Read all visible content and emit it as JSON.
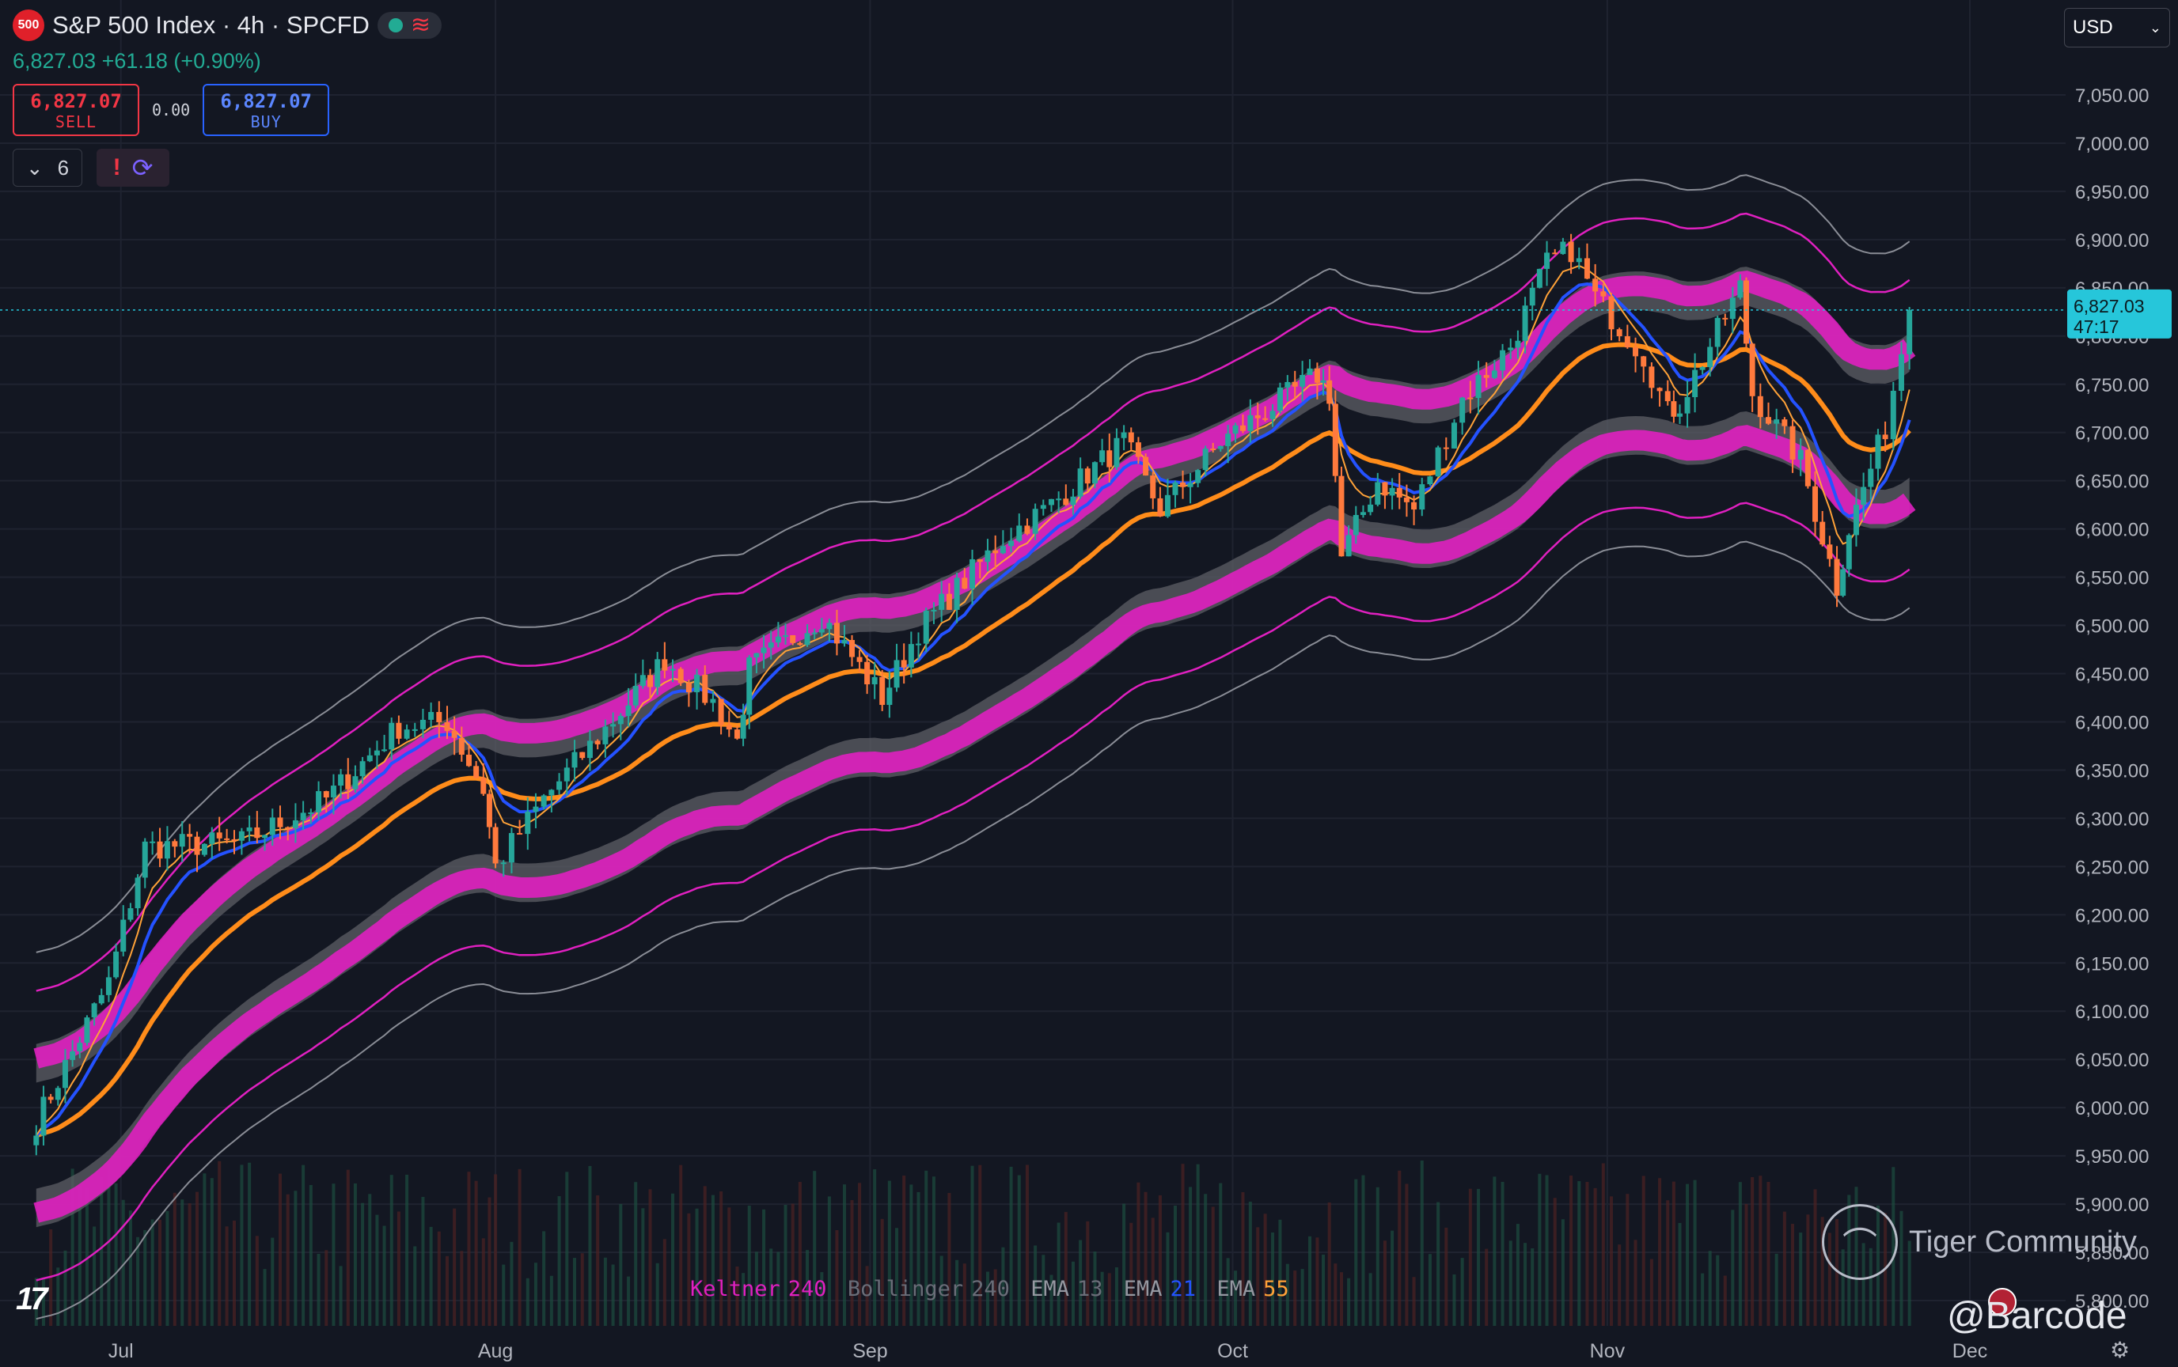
{
  "header": {
    "logo_text": "500",
    "title": "S&P 500 Index · 4h · SPCFD",
    "market_status_color": "#22ab94",
    "quote": "6,827.03 +61.18 (+0.90%)",
    "sell_price": "6,827.07",
    "sell_label": "SELL",
    "spread": "0.00",
    "buy_price": "6,827.07",
    "buy_label": "BUY",
    "collapse_count": "6"
  },
  "currency": "USD",
  "legend": {
    "keltner": "Keltner",
    "keltner_len": "240",
    "bollinger": "Bollinger",
    "bollinger_len": "240",
    "ema1": "EMA",
    "ema1_len": "13",
    "ema2": "EMA",
    "ema2_len": "21",
    "ema3": "EMA",
    "ema3_len": "55"
  },
  "watermark": {
    "text": "Tiger Community",
    "handle": "@Barcode"
  },
  "price_tag": {
    "price": "6,827.03",
    "countdown": "47:17"
  },
  "colors": {
    "background": "#131722",
    "up": "#26a69a",
    "down": "#ff7a3d",
    "keltner": "#e020c0",
    "bollinger_band": "#5d5f66",
    "ema13": "#ffa238",
    "ema21": "#2452ff",
    "ema55": "#ff8c1a"
  },
  "chart_data": {
    "type": "candlestick",
    "title": "S&P 500 Index · 4h · SPCFD",
    "ylim": [
      5775,
      7100
    ],
    "y_ticks": [
      "7,050.00",
      "7,000.00",
      "6,950.00",
      "6,900.00",
      "6,850.00",
      "6,800.00",
      "6,750.00",
      "6,700.00",
      "6,650.00",
      "6,600.00",
      "6,550.00",
      "6,500.00",
      "6,450.00",
      "6,400.00",
      "6,350.00",
      "6,300.00",
      "6,250.00",
      "6,200.00",
      "6,150.00",
      "6,100.00",
      "6,050.00",
      "6,000.00",
      "5,950.00",
      "5,900.00",
      "5,850.00",
      "5,800.00"
    ],
    "y_tick_values": [
      7050,
      7000,
      6950,
      6900,
      6850,
      6800,
      6750,
      6700,
      6650,
      6600,
      6550,
      6500,
      6450,
      6400,
      6350,
      6300,
      6250,
      6200,
      6150,
      6100,
      6050,
      6000,
      5950,
      5900,
      5850,
      5800
    ],
    "x_ticks": [
      "Jul",
      "Aug",
      "Sep",
      "Oct",
      "Nov",
      "Dec"
    ],
    "x_tick_dates": [
      "2025-07-01",
      "2025-08-01",
      "2025-09-01",
      "2025-10-01",
      "2025-11-01",
      "2025-12-01"
    ],
    "last_price": 6827.03,
    "close_path": [
      {
        "date": "2025-06-24",
        "close": 5985
      },
      {
        "date": "2025-06-30",
        "close": 6130
      },
      {
        "date": "2025-07-03",
        "close": 6270
      },
      {
        "date": "2025-07-11",
        "close": 6275
      },
      {
        "date": "2025-07-18",
        "close": 6320
      },
      {
        "date": "2025-07-24",
        "close": 6395
      },
      {
        "date": "2025-07-28",
        "close": 6400
      },
      {
        "date": "2025-07-31",
        "close": 6330
      },
      {
        "date": "2025-08-01",
        "close": 6250
      },
      {
        "date": "2025-08-05",
        "close": 6320
      },
      {
        "date": "2025-08-12",
        "close": 6420
      },
      {
        "date": "2025-08-15",
        "close": 6465
      },
      {
        "date": "2025-08-19",
        "close": 6420
      },
      {
        "date": "2025-08-21",
        "close": 6380
      },
      {
        "date": "2025-08-22",
        "close": 6455
      },
      {
        "date": "2025-08-28",
        "close": 6510
      },
      {
        "date": "2025-09-02",
        "close": 6425
      },
      {
        "date": "2025-09-05",
        "close": 6495
      },
      {
        "date": "2025-09-12",
        "close": 6590
      },
      {
        "date": "2025-09-16",
        "close": 6625
      },
      {
        "date": "2025-09-22",
        "close": 6690
      },
      {
        "date": "2025-09-25",
        "close": 6620
      },
      {
        "date": "2025-09-30",
        "close": 6690
      },
      {
        "date": "2025-10-08",
        "close": 6760
      },
      {
        "date": "2025-10-09",
        "close": 6740
      },
      {
        "date": "2025-10-10",
        "close": 6570
      },
      {
        "date": "2025-10-13",
        "close": 6650
      },
      {
        "date": "2025-10-16",
        "close": 6620
      },
      {
        "date": "2025-10-20",
        "close": 6735
      },
      {
        "date": "2025-10-24",
        "close": 6790
      },
      {
        "date": "2025-10-27",
        "close": 6875
      },
      {
        "date": "2025-10-29",
        "close": 6890
      },
      {
        "date": "2025-10-31",
        "close": 6840
      },
      {
        "date": "2025-11-04",
        "close": 6780
      },
      {
        "date": "2025-11-06",
        "close": 6720
      },
      {
        "date": "2025-11-07",
        "close": 6730
      },
      {
        "date": "2025-11-12",
        "close": 6850
      },
      {
        "date": "2025-11-13",
        "close": 6740
      },
      {
        "date": "2025-11-17",
        "close": 6670
      },
      {
        "date": "2025-11-20",
        "close": 6540
      },
      {
        "date": "2025-11-21",
        "close": 6600
      },
      {
        "date": "2025-11-24",
        "close": 6705
      },
      {
        "date": "2025-11-26",
        "close": 6827
      }
    ],
    "series": [
      {
        "name": "Keltner",
        "length": 240
      },
      {
        "name": "Bollinger",
        "length": 240
      },
      {
        "name": "EMA",
        "length": 13
      },
      {
        "name": "EMA",
        "length": 21
      },
      {
        "name": "EMA",
        "length": 55
      }
    ]
  }
}
